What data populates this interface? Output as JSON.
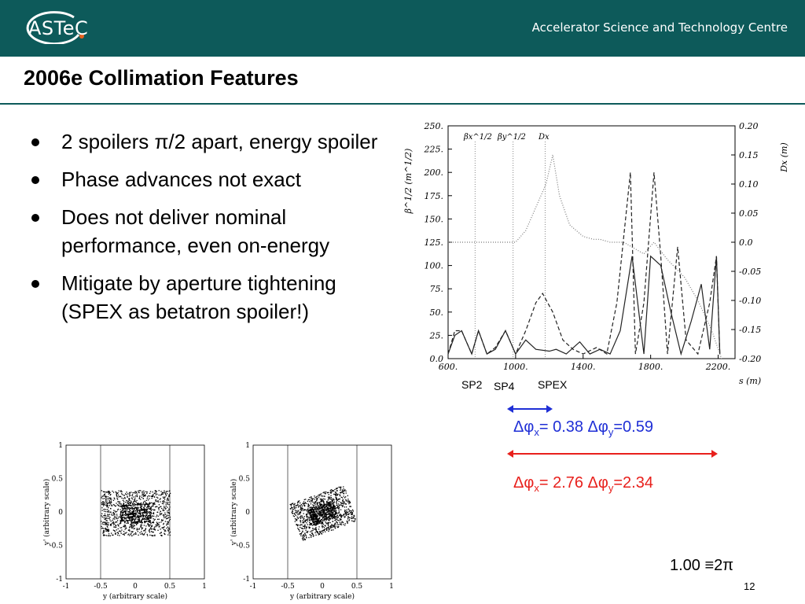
{
  "header": {
    "logo_text": "ASTeC",
    "organization": "Accelerator Science and Technology Centre"
  },
  "slide": {
    "title": "2006e Collimation Features",
    "bullets": [
      "2 spoilers π/2 apart, energy spoiler",
      "Phase advances not exact",
      "Does not deliver nominal performance, even on-energy",
      "Mitigate by aperture tightening (SPEX as betatron spoiler!)"
    ],
    "labels": {
      "sp2": "SP2",
      "sp4": "SP4",
      "spex": "SPEX"
    },
    "phase_blue": {
      "dx_sym": "Δφ",
      "dx_sub": "x",
      "dx_val": "= 0.38 ",
      "dy_sym": "Δφ",
      "dy_sub": "y",
      "dy_val": "=0.59"
    },
    "phase_red": {
      "dx_sym": "Δφ",
      "dx_sub": "x",
      "dx_val": "= 2.76 ",
      "dy_sym": "Δφ",
      "dy_sub": "y",
      "dy_val": "=2.34"
    },
    "footnote": "1.00 ≡2π",
    "page_number": "12"
  },
  "colors": {
    "header": "#0d5a5a",
    "blue": "#1f2fd6",
    "red": "#e8201c"
  },
  "chart_data": [
    {
      "type": "line",
      "xlabel": "s (m)",
      "ylabel": "β^1/2 (m^1/2)",
      "y2label": "Dx (m)",
      "xlim": [
        600,
        2300
      ],
      "ylim": [
        0,
        250
      ],
      "y2lim": [
        -0.2,
        0.2
      ],
      "xticks": [
        "600.",
        "1000.",
        "1400.",
        "1800.",
        "2200."
      ],
      "yticks": [
        "0.0",
        "25.",
        "50.",
        "75.",
        "100.",
        "125.",
        "150.",
        "175.",
        "200.",
        "225.",
        "250."
      ],
      "y2ticks": [
        "-0.20",
        "-0.15",
        "-0.10",
        "-0.05",
        "0.0",
        "0.05",
        "0.10",
        "0.15",
        "0.20"
      ],
      "legend": [
        "βx^1/2",
        "βy^1/2",
        "Dx"
      ],
      "series": [
        {
          "name": "βx^1/2",
          "style": "solid",
          "x": [
            600,
            640,
            680,
            740,
            780,
            830,
            880,
            940,
            1000,
            1060,
            1120,
            1200,
            1240,
            1300,
            1380,
            1440,
            1500,
            1560,
            1620,
            1690,
            1760,
            1800,
            1860,
            1920,
            1980,
            2040,
            2100,
            2150,
            2190,
            2210
          ],
          "y": [
            5,
            25,
            30,
            5,
            30,
            5,
            10,
            30,
            5,
            20,
            10,
            8,
            10,
            5,
            18,
            5,
            10,
            5,
            30,
            110,
            5,
            110,
            100,
            50,
            5,
            40,
            80,
            10,
            110,
            5
          ]
        },
        {
          "name": "βy^1/2",
          "style": "dashed",
          "x": [
            600,
            640,
            680,
            740,
            780,
            830,
            880,
            940,
            1000,
            1060,
            1120,
            1160,
            1220,
            1280,
            1340,
            1400,
            1480,
            1540,
            1600,
            1680,
            1710,
            1760,
            1820,
            1860,
            1900,
            1960,
            2010,
            2080,
            2150,
            2190,
            2210
          ],
          "y": [
            5,
            30,
            30,
            5,
            30,
            5,
            12,
            30,
            5,
            30,
            60,
            70,
            50,
            20,
            10,
            5,
            12,
            5,
            60,
            200,
            5,
            60,
            200,
            110,
            5,
            120,
            20,
            5,
            60,
            110,
            5
          ]
        },
        {
          "name": "Dx",
          "style": "dotted",
          "axis": "y2",
          "x": [
            600,
            760,
            860,
            1000,
            1060,
            1120,
            1180,
            1220,
            1260,
            1320,
            1400,
            1460,
            1500,
            1560,
            1640,
            1700,
            1760,
            1820,
            1900,
            2000,
            2080,
            2160,
            2220
          ],
          "y": [
            0.0,
            0.0,
            0.0,
            0.0,
            0.02,
            0.06,
            0.1,
            0.15,
            0.08,
            0.03,
            0.01,
            0.005,
            0.005,
            0.0,
            0.0,
            -0.01,
            -0.02,
            0.0,
            -0.03,
            -0.06,
            -0.1,
            -0.15,
            -0.2
          ]
        }
      ]
    },
    {
      "type": "scatter",
      "xlabel": "y (arbitrary scale)",
      "ylabel": "y' (arbitrary scale)",
      "xlim": [
        -1,
        1
      ],
      "ylim": [
        -1,
        1
      ],
      "xticks": [
        "-1",
        "-0.5",
        "0",
        "0.5",
        "1"
      ],
      "yticks": [
        "-1",
        "-0.5",
        "0",
        "0.5",
        "1"
      ],
      "distribution": "rectangle",
      "extent": {
        "x": [
          -0.5,
          0.5
        ],
        "y": [
          -0.35,
          0.33
        ]
      }
    },
    {
      "type": "scatter",
      "xlabel": "y (arbitrary scale)",
      "ylabel": "y' (arbitrary scale)",
      "xlim": [
        -1,
        1
      ],
      "ylim": [
        -1,
        1
      ],
      "xticks": [
        "-1",
        "-0.5",
        "0",
        "0.5",
        "1"
      ],
      "yticks": [
        "-1",
        "-0.5",
        "0",
        "0.5",
        "1"
      ],
      "distribution": "rotated-rectangle",
      "extent": {
        "x": [
          -0.5,
          0.5
        ],
        "y": [
          -0.35,
          0.33
        ]
      }
    }
  ]
}
